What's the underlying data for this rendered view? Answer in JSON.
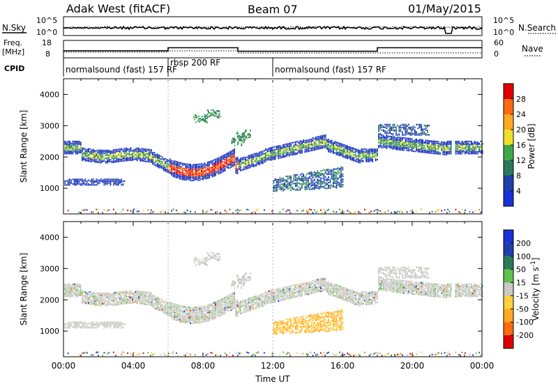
{
  "header": {
    "title": "Adak West (fitACF)",
    "beam": "Beam 07",
    "date": "01/May/2015"
  },
  "noise_panel": {
    "left_label": "N.Sky",
    "right_label": "N.Search",
    "left_ticks": [
      "10^5",
      "10^0"
    ],
    "right_ticks": [
      "10^5",
      "10^0"
    ]
  },
  "freq_panel": {
    "left_label_1": "Freq.",
    "left_label_2": "[MHz]",
    "right_label": "Nave",
    "left_ticks": [
      18,
      8
    ],
    "right_ticks": [
      60,
      0
    ],
    "freq_steps": [
      {
        "t0": 0,
        "t1": 6,
        "mhz": 11.0
      },
      {
        "t0": 6,
        "t1": 10,
        "mhz": 13.6
      },
      {
        "t0": 10,
        "t1": 18,
        "mhz": 10.6
      },
      {
        "t0": 18,
        "t1": 24,
        "mhz": 13.6
      }
    ]
  },
  "cpid": {
    "label": "CPID",
    "segments": [
      {
        "text": "normalsound (fast) 157 RF",
        "t0": 0,
        "t1": 6
      },
      {
        "text": "rbsp 200 RF",
        "t0": 6,
        "t1": 12
      },
      {
        "text": "normalsound (fast) 157 RF",
        "t0": 12,
        "t1": 24
      }
    ]
  },
  "chart_data": [
    {
      "type": "heatmap",
      "name": "power",
      "ylabel": "Slant Range [km]",
      "xlim": [
        0,
        24
      ],
      "ylim": [
        180,
        4500
      ],
      "yticks": [
        1000,
        2000,
        3000,
        4000
      ],
      "colorbar_label": "Power [dB]",
      "colorbar_ticks": [
        4,
        8,
        12,
        16,
        20,
        24,
        28
      ],
      "colorbar_range": [
        0,
        32
      ],
      "colors": [
        "#1a2fd6",
        "#1f3fa8",
        "#2a7a5e",
        "#3fa84a",
        "#f0e02a",
        "#ffaa20",
        "#ff6a10",
        "#e00000"
      ]
    },
    {
      "type": "heatmap",
      "name": "velocity",
      "ylabel": "Slant Range [km]",
      "xlabel": "Time UT",
      "xlim": [
        0,
        24
      ],
      "ylim": [
        180,
        4500
      ],
      "yticks": [
        1000,
        2000,
        3000,
        4000
      ],
      "xticks": [
        0,
        4,
        8,
        12,
        16,
        20,
        24
      ],
      "xticklabels": [
        "00:00",
        "04:00",
        "08:00",
        "12:00",
        "16:00",
        "20:00",
        "00:00"
      ],
      "colorbar_label": "Velocity [m s",
      "colorbar_label_sup": "-1",
      "colorbar_label_end": "]",
      "colorbar_ticks": [
        200,
        100,
        50,
        15,
        -15,
        -50,
        -100,
        -200
      ],
      "colors": [
        "#1a2fd6",
        "#1f3fa8",
        "#2a7a5e",
        "#5ec24a",
        "#c8c8c4",
        "#ffd040",
        "#ffaa20",
        "#ff6a10",
        "#e00000"
      ]
    }
  ]
}
